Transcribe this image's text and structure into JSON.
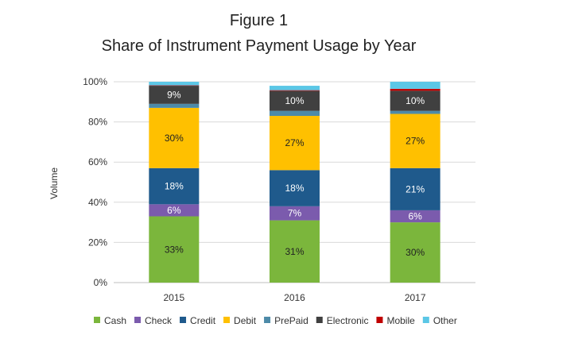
{
  "chart_data": {
    "type": "bar",
    "stacked": true,
    "title_line1": "Figure 1",
    "title_line2": "Share of Instrument Payment Usage by Year",
    "xlabel": "",
    "ylabel": "Volume",
    "ylim": [
      0,
      100
    ],
    "yticks": [
      "0%",
      "20%",
      "40%",
      "60%",
      "80%",
      "100%"
    ],
    "categories": [
      "2015",
      "2016",
      "2017"
    ],
    "series": [
      {
        "name": "Cash",
        "color": "#7bb63c",
        "values": [
          33,
          31,
          30
        ],
        "labels": [
          "33%",
          "31%",
          "30%"
        ],
        "label_color": "#222222"
      },
      {
        "name": "Check",
        "color": "#7b5bad",
        "values": [
          6,
          7,
          6
        ],
        "labels": [
          "6%",
          "7%",
          "6%"
        ],
        "label_color": "#ffffff"
      },
      {
        "name": "Credit",
        "color": "#1f5a8c",
        "values": [
          18,
          18,
          21
        ],
        "labels": [
          "18%",
          "18%",
          "21%"
        ],
        "label_color": "#ffffff"
      },
      {
        "name": "Debit",
        "color": "#ffc000",
        "values": [
          30,
          27,
          27
        ],
        "labels": [
          "30%",
          "27%",
          "27%"
        ],
        "label_color": "#222222"
      },
      {
        "name": "PrePaid",
        "color": "#4d8aa8",
        "values": [
          2,
          2.5,
          1.5
        ],
        "labels": [
          "",
          "",
          ""
        ],
        "label_color": "#ffffff"
      },
      {
        "name": "Electronic",
        "color": "#404040",
        "values": [
          9,
          10,
          10
        ],
        "labels": [
          "9%",
          "10%",
          "10%"
        ],
        "label_color": "#ffffff"
      },
      {
        "name": "Mobile",
        "color": "#c00000",
        "values": [
          0.2,
          0.3,
          1
        ],
        "labels": [
          "",
          "",
          ""
        ],
        "label_color": "#ffffff"
      },
      {
        "name": "Other",
        "color": "#5bc7e6",
        "values": [
          1.8,
          2.2,
          3.5
        ],
        "labels": [
          "",
          "",
          ""
        ],
        "label_color": "#222222"
      }
    ],
    "grid": true,
    "legend_position": "bottom"
  }
}
